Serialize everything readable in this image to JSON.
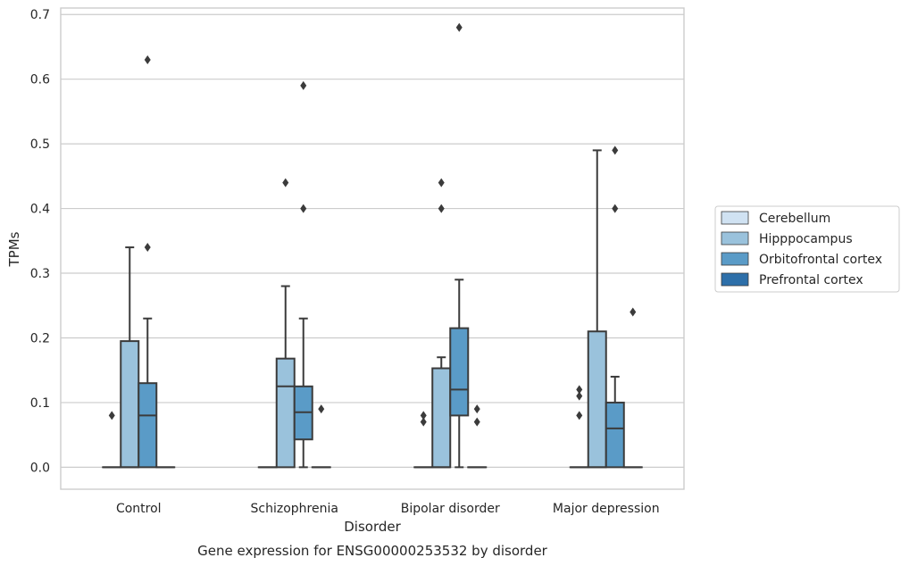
{
  "chart_data": {
    "type": "boxplot",
    "title": "Gene expression for ENSG00000253532 by disorder",
    "xlabel": "Disorder",
    "ylabel": "TPMs",
    "ylim": [
      -0.034,
      0.71
    ],
    "yticks": [
      "0.0",
      "0.1",
      "0.2",
      "0.3",
      "0.4",
      "0.5",
      "0.6",
      "0.7"
    ],
    "ytick_values": [
      0.0,
      0.1,
      0.2,
      0.3,
      0.4,
      0.5,
      0.6,
      0.7
    ],
    "grid": "horizontal",
    "legend_position": "right",
    "categories": [
      "Control",
      "Schizophrenia",
      "Bipolar disorder",
      "Major depression"
    ],
    "series": [
      {
        "name": "Cerebellum",
        "color": "#d0e2f2",
        "boxes": [
          {
            "q1": 0.0,
            "median": 0.0,
            "q3": 0.0,
            "whislo": 0.0,
            "whishi": 0.0,
            "fliers": [
              0.08
            ]
          },
          {
            "q1": 0.0,
            "median": 0.0,
            "q3": 0.0,
            "whislo": 0.0,
            "whishi": 0.0,
            "fliers": []
          },
          {
            "q1": 0.0,
            "median": 0.0,
            "q3": 0.0,
            "whislo": 0.0,
            "whishi": 0.0,
            "fliers": [
              0.08,
              0.07
            ]
          },
          {
            "q1": 0.0,
            "median": 0.0,
            "q3": 0.0,
            "whislo": 0.0,
            "whishi": 0.0,
            "fliers": [
              0.12,
              0.11,
              0.08
            ]
          }
        ]
      },
      {
        "name": "Hipppocampus",
        "color": "#9ac2dc",
        "boxes": [
          {
            "q1": 0.0,
            "median": 0.0,
            "q3": 0.195,
            "whislo": 0.0,
            "whishi": 0.34,
            "fliers": []
          },
          {
            "q1": 0.0,
            "median": 0.125,
            "q3": 0.168,
            "whislo": 0.0,
            "whishi": 0.28,
            "fliers": [
              0.44
            ]
          },
          {
            "q1": 0.0,
            "median": 0.0,
            "q3": 0.153,
            "whislo": 0.0,
            "whishi": 0.17,
            "fliers": [
              0.44,
              0.4
            ]
          },
          {
            "q1": 0.0,
            "median": 0.0,
            "q3": 0.21,
            "whislo": 0.0,
            "whishi": 0.49,
            "fliers": []
          }
        ]
      },
      {
        "name": "Orbitofrontal cortex",
        "color": "#5a9bc7",
        "boxes": [
          {
            "q1": 0.0,
            "median": 0.08,
            "q3": 0.13,
            "whislo": 0.0,
            "whishi": 0.23,
            "fliers": [
              0.63,
              0.34
            ]
          },
          {
            "q1": 0.043,
            "median": 0.085,
            "q3": 0.125,
            "whislo": 0.0,
            "whishi": 0.23,
            "fliers": [
              0.59,
              0.4
            ]
          },
          {
            "q1": 0.08,
            "median": 0.12,
            "q3": 0.215,
            "whislo": 0.0,
            "whishi": 0.29,
            "fliers": [
              0.68
            ]
          },
          {
            "q1": 0.0,
            "median": 0.06,
            "q3": 0.1,
            "whislo": 0.0,
            "whishi": 0.14,
            "fliers": [
              0.49,
              0.4
            ]
          }
        ]
      },
      {
        "name": "Prefrontal cortex",
        "color": "#2d6fa9",
        "boxes": [
          {
            "q1": 0.0,
            "median": 0.0,
            "q3": 0.0,
            "whislo": 0.0,
            "whishi": 0.0,
            "fliers": []
          },
          {
            "q1": 0.0,
            "median": 0.0,
            "q3": 0.0,
            "whislo": 0.0,
            "whishi": 0.0,
            "fliers": [
              0.09
            ]
          },
          {
            "q1": 0.0,
            "median": 0.0,
            "q3": 0.0,
            "whislo": 0.0,
            "whishi": 0.0,
            "fliers": [
              0.09,
              0.07
            ]
          },
          {
            "q1": 0.0,
            "median": 0.0,
            "q3": 0.0,
            "whislo": 0.0,
            "whishi": 0.0,
            "fliers": [
              0.24
            ]
          }
        ]
      }
    ]
  }
}
